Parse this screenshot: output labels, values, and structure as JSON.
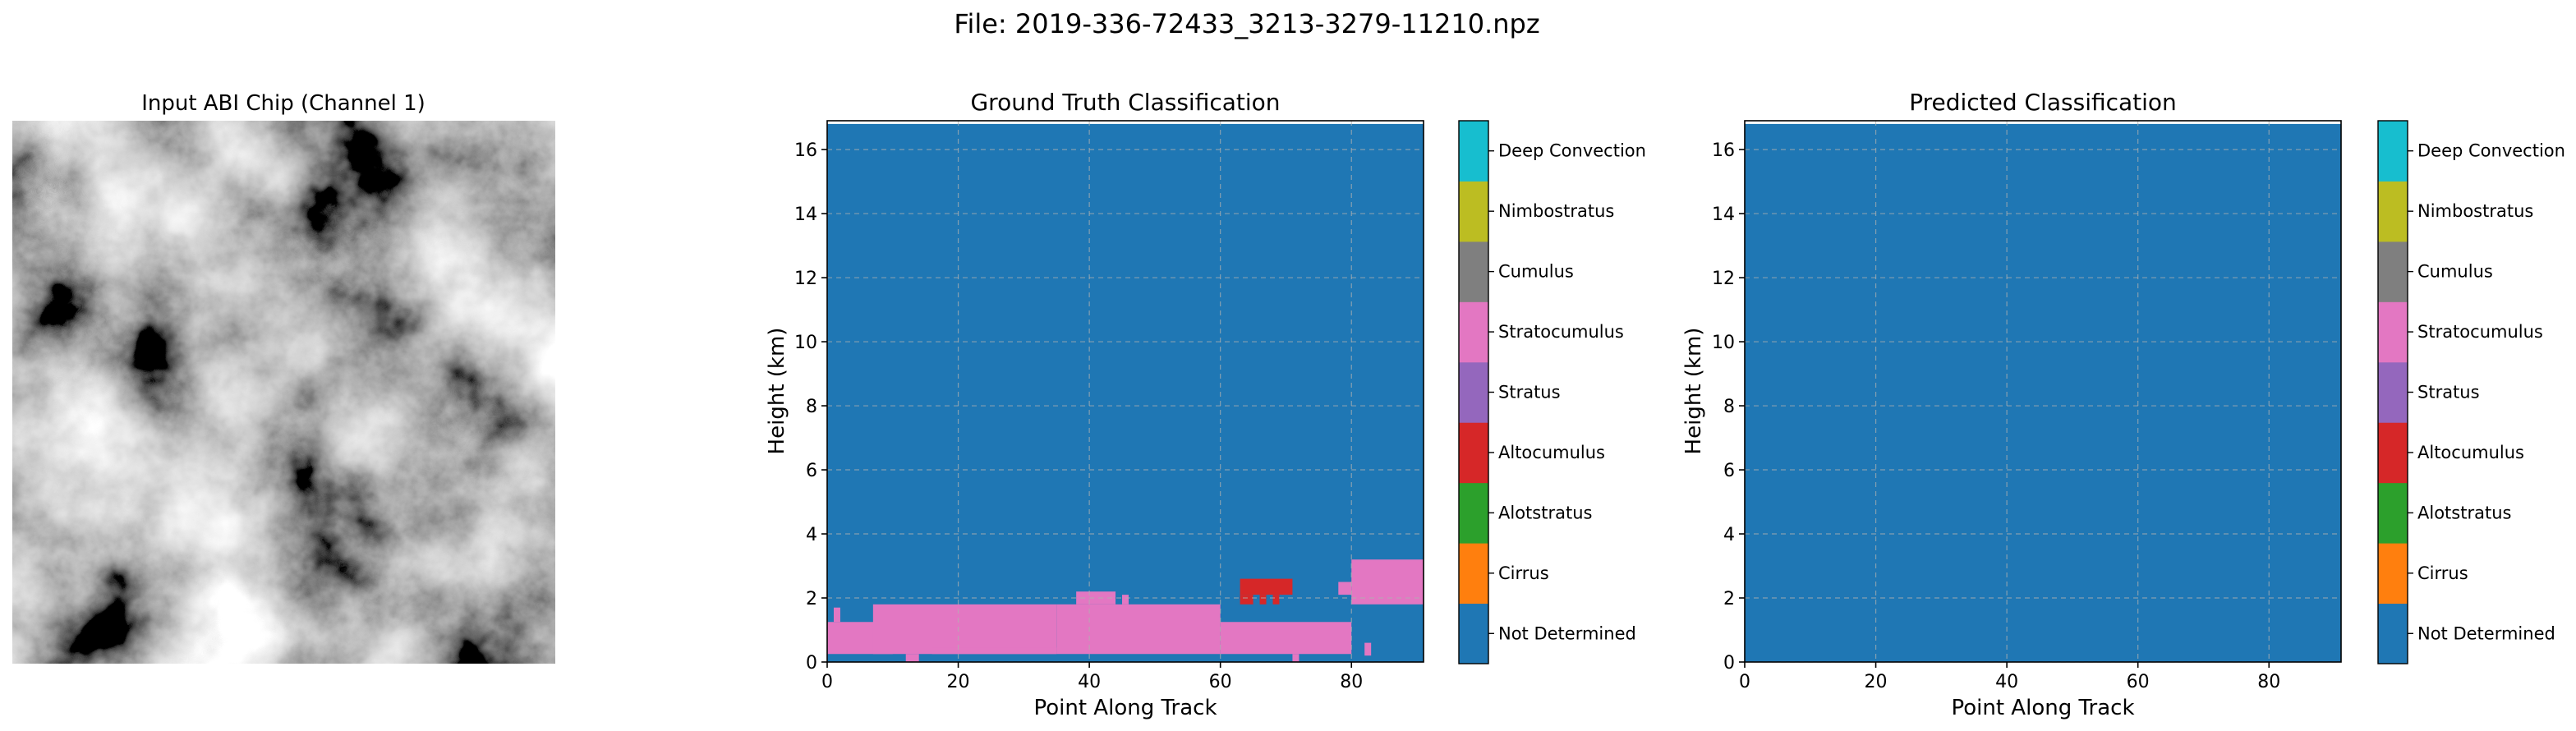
{
  "figure": {
    "title": "File: 2019-336-72433_3213-3279-11210.npz"
  },
  "input_panel": {
    "title": "Input ABI Chip (Channel 1)"
  },
  "chart_data": [
    {
      "type": "heatmap",
      "title": "Ground Truth Classification",
      "xlabel": "Point Along Track",
      "ylabel": "Height (km)",
      "xlim": [
        0,
        91
      ],
      "ylim": [
        0,
        16.8
      ],
      "xticks": [
        0,
        20,
        40,
        60,
        80
      ],
      "yticks": [
        0,
        2,
        4,
        6,
        8,
        10,
        12,
        14,
        16
      ],
      "grid": true,
      "background_class": "Not Determined",
      "regions": [
        {
          "class": "Stratocumulus",
          "x": [
            0,
            10
          ],
          "y": [
            0.25,
            1.25
          ]
        },
        {
          "class": "Stratocumulus",
          "x": [
            1,
            2
          ],
          "y": [
            1.25,
            1.7
          ]
        },
        {
          "class": "Stratocumulus",
          "x": [
            7,
            35
          ],
          "y": [
            0.25,
            1.8
          ]
        },
        {
          "class": "Stratocumulus",
          "x": [
            12,
            14
          ],
          "y": [
            0.0,
            0.25
          ]
        },
        {
          "class": "Stratocumulus",
          "x": [
            16,
            35
          ],
          "y": [
            0.25,
            0.45
          ]
        },
        {
          "class": "Stratocumulus",
          "x": [
            35,
            60
          ],
          "y": [
            0.25,
            1.8
          ]
        },
        {
          "class": "Stratocumulus",
          "x": [
            38,
            44
          ],
          "y": [
            1.8,
            2.2
          ]
        },
        {
          "class": "Stratocumulus",
          "x": [
            45,
            46
          ],
          "y": [
            1.8,
            2.1
          ]
        },
        {
          "class": "Stratocumulus",
          "x": [
            60,
            80
          ],
          "y": [
            0.25,
            1.25
          ]
        },
        {
          "class": "Stratocumulus",
          "x": [
            71,
            72
          ],
          "y": [
            0.0,
            0.25
          ]
        },
        {
          "class": "Stratocumulus",
          "x": [
            82,
            83
          ],
          "y": [
            0.2,
            0.6
          ]
        },
        {
          "class": "Stratocumulus",
          "x": [
            78,
            80
          ],
          "y": [
            2.1,
            2.5
          ]
        },
        {
          "class": "Stratocumulus",
          "x": [
            80,
            91
          ],
          "y": [
            1.8,
            3.2
          ]
        },
        {
          "class": "Altocumulus",
          "x": [
            63,
            71
          ],
          "y": [
            2.1,
            2.6
          ]
        },
        {
          "class": "Altocumulus",
          "x": [
            63,
            65
          ],
          "y": [
            1.8,
            2.1
          ]
        },
        {
          "class": "Altocumulus",
          "x": [
            66,
            67
          ],
          "y": [
            1.8,
            2.1
          ]
        },
        {
          "class": "Altocumulus",
          "x": [
            68,
            69
          ],
          "y": [
            1.8,
            2.1
          ]
        }
      ]
    },
    {
      "type": "heatmap",
      "title": "Predicted Classification",
      "xlabel": "Point Along Track",
      "ylabel": "Height (km)",
      "xlim": [
        0,
        91
      ],
      "ylim": [
        0,
        16.8
      ],
      "xticks": [
        0,
        20,
        40,
        60,
        80
      ],
      "yticks": [
        0,
        2,
        4,
        6,
        8,
        10,
        12,
        14,
        16
      ],
      "grid": true,
      "background_class": "Not Determined",
      "regions": []
    }
  ],
  "colorbar": {
    "classes": [
      {
        "label": "Not Determined",
        "color": "#1f77b4"
      },
      {
        "label": "Cirrus",
        "color": "#ff7f0e"
      },
      {
        "label": "Alotstratus",
        "color": "#2ca02c"
      },
      {
        "label": "Altocumulus",
        "color": "#d62728"
      },
      {
        "label": "Stratus",
        "color": "#9467bd"
      },
      {
        "label": "Stratocumulus",
        "color": "#e377c2"
      },
      {
        "label": "Cumulus",
        "color": "#7f7f7f"
      },
      {
        "label": "Nimbostratus",
        "color": "#bcbd22"
      },
      {
        "label": "Deep Convection",
        "color": "#17becf"
      }
    ]
  }
}
